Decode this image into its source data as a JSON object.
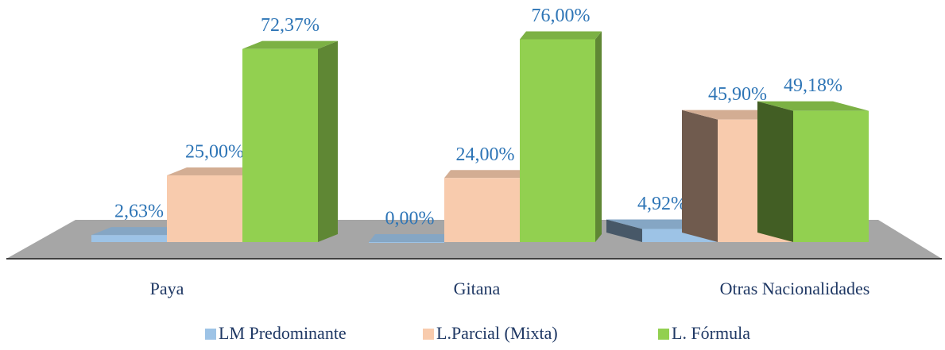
{
  "chart_data": {
    "type": "bar3d",
    "categories": [
      "Paya",
      "Gitana",
      "Otras Nacionalidades"
    ],
    "series": [
      {
        "name": "LM Predominante",
        "color": "#9dc3e6",
        "values": [
          2.63,
          0,
          4.92
        ],
        "value_labels": [
          "2,63%",
          "0,00%",
          "4,92%"
        ]
      },
      {
        "name": "L.Parcial (Mixta)",
        "color": "#f8cbad",
        "values": [
          25,
          24,
          45.9
        ],
        "value_labels": [
          "25,00%",
          "24,00%",
          "45,90%"
        ]
      },
      {
        "name": "L. Fórmula",
        "color": "#92d050",
        "values": [
          72.37,
          76,
          49.18
        ],
        "value_labels": [
          "72,37%",
          "76,00%",
          "49,18%"
        ]
      }
    ],
    "ylim": [
      0,
      80
    ],
    "legend": "bottom"
  }
}
